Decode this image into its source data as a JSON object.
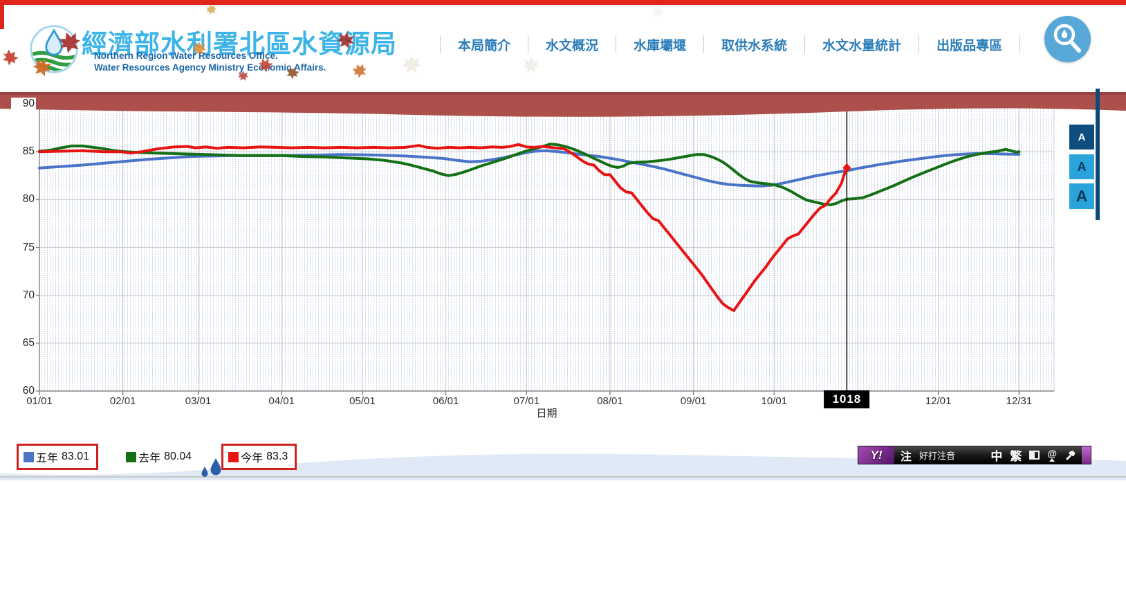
{
  "site": {
    "title_zh": "經濟部水利署北區水資源局",
    "subtitle_en_1": "Northern Region Water Resources Office.",
    "subtitle_en_2": "Water Resources Agency Ministry Economic Affairs."
  },
  "nav": {
    "items": [
      {
        "label": "本局簡介"
      },
      {
        "label": "水文概況"
      },
      {
        "label": "水庫壩堰"
      },
      {
        "label": "取供水系統"
      },
      {
        "label": "水文水量統計"
      },
      {
        "label": "出版品專區"
      }
    ]
  },
  "font_size_controls": {
    "items": [
      {
        "label": "A",
        "size": "small",
        "active": true
      },
      {
        "label": "A",
        "size": "medium",
        "active": false
      },
      {
        "label": "A",
        "size": "large",
        "active": false
      }
    ]
  },
  "legend": {
    "items": [
      {
        "label": "五年",
        "value": "83.01",
        "color": "#4a74c8",
        "boxed": true
      },
      {
        "label": "去年",
        "value": "80.04",
        "color": "#157015",
        "boxed": false
      },
      {
        "label": "今年",
        "value": "83.3",
        "color": "#e81414",
        "boxed": true
      }
    ]
  },
  "ime_bar": {
    "logo": "Y!",
    "mode": "注",
    "name": "好打注音",
    "lang": "中",
    "charset": "繁",
    "at": "@"
  },
  "colors": {
    "nav_blue": "#2b7db8",
    "title_blue": "#3db4e8",
    "banner_red": "#ad4f4b",
    "top_strip_red": "#e0261c",
    "button_dark": "#0e4d7e",
    "button_light": "#2aa2da",
    "tooltip_bg": "#000000"
  },
  "chart_data": {
    "type": "line",
    "title": "",
    "xlabel": "日期",
    "ylabel": "",
    "ylim": [
      60,
      90
    ],
    "yticks": [
      90,
      85,
      80,
      75,
      70,
      65,
      60
    ],
    "x_unit": "day_of_year",
    "x_domain_days": 377,
    "xtick_days": [
      0,
      31,
      59,
      90,
      120,
      151,
      181,
      212,
      243,
      273,
      304,
      334,
      364
    ],
    "xtick_labels": [
      "01/01",
      "02/01",
      "03/01",
      "04/01",
      "05/01",
      "06/01",
      "07/01",
      "08/01",
      "09/01",
      "10/01",
      "11/01",
      "12/01",
      "12/31"
    ],
    "grid": true,
    "legend_position": "bottom-left",
    "cursor": {
      "day": 300,
      "label": "1018"
    },
    "series": [
      {
        "name": "五年",
        "color": "#4a74c8",
        "current": 83.01,
        "end_marker": false,
        "points": [
          [
            0,
            83.3
          ],
          [
            8,
            83.45
          ],
          [
            16,
            83.6
          ],
          [
            24,
            83.8
          ],
          [
            32,
            84.0
          ],
          [
            40,
            84.2
          ],
          [
            48,
            84.35
          ],
          [
            56,
            84.5
          ],
          [
            64,
            84.55
          ],
          [
            72,
            84.6
          ],
          [
            80,
            84.6
          ],
          [
            88,
            84.6
          ],
          [
            96,
            84.62
          ],
          [
            104,
            84.65
          ],
          [
            112,
            84.7
          ],
          [
            120,
            84.68
          ],
          [
            128,
            84.62
          ],
          [
            136,
            84.55
          ],
          [
            144,
            84.42
          ],
          [
            150,
            84.3
          ],
          [
            155,
            84.1
          ],
          [
            160,
            83.95
          ],
          [
            164,
            84.0
          ],
          [
            168,
            84.15
          ],
          [
            172,
            84.35
          ],
          [
            176,
            84.6
          ],
          [
            180,
            84.85
          ],
          [
            184,
            85.05
          ],
          [
            188,
            85.1
          ],
          [
            192,
            85.02
          ],
          [
            196,
            84.9
          ],
          [
            200,
            84.75
          ],
          [
            204,
            84.62
          ],
          [
            208,
            84.5
          ],
          [
            212,
            84.32
          ],
          [
            216,
            84.12
          ],
          [
            220,
            83.9
          ],
          [
            224,
            83.68
          ],
          [
            228,
            83.45
          ],
          [
            232,
            83.2
          ],
          [
            236,
            82.9
          ],
          [
            240,
            82.6
          ],
          [
            244,
            82.3
          ],
          [
            248,
            82.0
          ],
          [
            252,
            81.75
          ],
          [
            256,
            81.58
          ],
          [
            260,
            81.5
          ],
          [
            264,
            81.45
          ],
          [
            268,
            81.42
          ],
          [
            272,
            81.5
          ],
          [
            276,
            81.7
          ],
          [
            280,
            81.95
          ],
          [
            284,
            82.2
          ],
          [
            288,
            82.45
          ],
          [
            292,
            82.65
          ],
          [
            296,
            82.85
          ],
          [
            300,
            83.01
          ],
          [
            304,
            83.25
          ],
          [
            308,
            83.45
          ],
          [
            312,
            83.65
          ],
          [
            316,
            83.82
          ],
          [
            320,
            84.0
          ],
          [
            324,
            84.15
          ],
          [
            328,
            84.3
          ],
          [
            332,
            84.45
          ],
          [
            336,
            84.58
          ],
          [
            340,
            84.68
          ],
          [
            344,
            84.75
          ],
          [
            348,
            84.8
          ],
          [
            352,
            84.8
          ],
          [
            356,
            84.78
          ],
          [
            360,
            84.74
          ],
          [
            364,
            84.72
          ]
        ]
      },
      {
        "name": "去年",
        "color": "#157015",
        "current": 80.04,
        "end_marker": false,
        "points": [
          [
            0,
            85.05
          ],
          [
            4,
            85.15
          ],
          [
            8,
            85.4
          ],
          [
            12,
            85.6
          ],
          [
            16,
            85.6
          ],
          [
            20,
            85.45
          ],
          [
            24,
            85.3
          ],
          [
            28,
            85.1
          ],
          [
            32,
            85.0
          ],
          [
            38,
            84.9
          ],
          [
            44,
            84.85
          ],
          [
            50,
            84.8
          ],
          [
            56,
            84.75
          ],
          [
            62,
            84.7
          ],
          [
            68,
            84.65
          ],
          [
            74,
            84.6
          ],
          [
            82,
            84.6
          ],
          [
            90,
            84.6
          ],
          [
            98,
            84.5
          ],
          [
            106,
            84.45
          ],
          [
            114,
            84.35
          ],
          [
            122,
            84.25
          ],
          [
            128,
            84.1
          ],
          [
            134,
            83.85
          ],
          [
            138,
            83.6
          ],
          [
            142,
            83.3
          ],
          [
            146,
            83.0
          ],
          [
            149,
            82.7
          ],
          [
            152,
            82.5
          ],
          [
            155,
            82.65
          ],
          [
            158,
            82.9
          ],
          [
            161,
            83.2
          ],
          [
            164,
            83.5
          ],
          [
            168,
            83.85
          ],
          [
            172,
            84.2
          ],
          [
            176,
            84.6
          ],
          [
            180,
            85.0
          ],
          [
            184,
            85.3
          ],
          [
            187,
            85.55
          ],
          [
            190,
            85.8
          ],
          [
            193,
            85.7
          ],
          [
            196,
            85.5
          ],
          [
            199,
            85.2
          ],
          [
            202,
            84.85
          ],
          [
            205,
            84.45
          ],
          [
            208,
            84.05
          ],
          [
            211,
            83.65
          ],
          [
            213,
            83.45
          ],
          [
            215,
            83.35
          ],
          [
            217,
            83.5
          ],
          [
            219,
            83.8
          ],
          [
            222,
            83.9
          ],
          [
            226,
            83.95
          ],
          [
            230,
            84.05
          ],
          [
            234,
            84.2
          ],
          [
            238,
            84.4
          ],
          [
            241,
            84.55
          ],
          [
            244,
            84.7
          ],
          [
            247,
            84.7
          ],
          [
            250,
            84.45
          ],
          [
            252,
            84.2
          ],
          [
            254,
            83.9
          ],
          [
            256,
            83.5
          ],
          [
            258,
            83.05
          ],
          [
            260,
            82.6
          ],
          [
            262,
            82.2
          ],
          [
            264,
            81.9
          ],
          [
            267,
            81.75
          ],
          [
            270,
            81.65
          ],
          [
            273,
            81.55
          ],
          [
            276,
            81.3
          ],
          [
            279,
            80.9
          ],
          [
            282,
            80.4
          ],
          [
            285,
            79.95
          ],
          [
            288,
            79.75
          ],
          [
            291,
            79.55
          ],
          [
            294,
            79.45
          ],
          [
            296,
            79.6
          ],
          [
            298,
            79.85
          ],
          [
            300,
            80.04
          ],
          [
            303,
            80.1
          ],
          [
            306,
            80.2
          ],
          [
            309,
            80.5
          ],
          [
            313,
            80.95
          ],
          [
            317,
            81.4
          ],
          [
            321,
            81.9
          ],
          [
            325,
            82.4
          ],
          [
            329,
            82.85
          ],
          [
            333,
            83.3
          ],
          [
            337,
            83.75
          ],
          [
            341,
            84.15
          ],
          [
            345,
            84.5
          ],
          [
            349,
            84.75
          ],
          [
            353,
            84.95
          ],
          [
            356,
            85.05
          ],
          [
            359,
            85.25
          ],
          [
            361,
            85.1
          ],
          [
            363,
            84.95
          ],
          [
            364,
            85.0
          ]
        ]
      },
      {
        "name": "今年",
        "color": "#e81414",
        "current": 83.3,
        "end_marker": true,
        "points": [
          [
            0,
            85.0
          ],
          [
            8,
            85.05
          ],
          [
            16,
            85.1
          ],
          [
            24,
            85.0
          ],
          [
            30,
            85.0
          ],
          [
            34,
            84.85
          ],
          [
            38,
            85.0
          ],
          [
            44,
            85.3
          ],
          [
            50,
            85.5
          ],
          [
            55,
            85.55
          ],
          [
            58,
            85.4
          ],
          [
            62,
            85.5
          ],
          [
            66,
            85.35
          ],
          [
            70,
            85.45
          ],
          [
            76,
            85.4
          ],
          [
            82,
            85.5
          ],
          [
            88,
            85.45
          ],
          [
            94,
            85.4
          ],
          [
            100,
            85.45
          ],
          [
            106,
            85.4
          ],
          [
            112,
            85.45
          ],
          [
            118,
            85.4
          ],
          [
            124,
            85.45
          ],
          [
            130,
            85.4
          ],
          [
            136,
            85.45
          ],
          [
            141,
            85.65
          ],
          [
            144,
            85.45
          ],
          [
            148,
            85.35
          ],
          [
            152,
            85.45
          ],
          [
            156,
            85.4
          ],
          [
            160,
            85.45
          ],
          [
            164,
            85.4
          ],
          [
            168,
            85.5
          ],
          [
            172,
            85.45
          ],
          [
            175,
            85.55
          ],
          [
            178,
            85.75
          ],
          [
            181,
            85.5
          ],
          [
            184,
            85.45
          ],
          [
            187,
            85.55
          ],
          [
            190,
            85.45
          ],
          [
            193,
            85.35
          ],
          [
            195,
            85.3
          ],
          [
            198,
            84.8
          ],
          [
            200,
            84.4
          ],
          [
            202,
            84.0
          ],
          [
            204,
            83.7
          ],
          [
            206,
            83.6
          ],
          [
            208,
            83.0
          ],
          [
            210,
            82.6
          ],
          [
            212,
            82.6
          ],
          [
            214,
            81.9
          ],
          [
            216,
            81.2
          ],
          [
            218,
            80.8
          ],
          [
            220,
            80.7
          ],
          [
            222,
            80.0
          ],
          [
            224,
            79.3
          ],
          [
            226,
            78.6
          ],
          [
            228,
            78.0
          ],
          [
            230,
            77.8
          ],
          [
            232,
            77.1
          ],
          [
            234,
            76.4
          ],
          [
            236,
            75.7
          ],
          [
            238,
            75.0
          ],
          [
            240,
            74.3
          ],
          [
            242,
            73.6
          ],
          [
            244,
            72.9
          ],
          [
            246,
            72.2
          ],
          [
            248,
            71.4
          ],
          [
            250,
            70.6
          ],
          [
            252,
            69.8
          ],
          [
            254,
            69.1
          ],
          [
            256,
            68.7
          ],
          [
            258,
            68.4
          ],
          [
            260,
            69.2
          ],
          [
            262,
            70.0
          ],
          [
            264,
            70.8
          ],
          [
            266,
            71.6
          ],
          [
            268,
            72.3
          ],
          [
            270,
            73.0
          ],
          [
            272,
            73.8
          ],
          [
            274,
            74.5
          ],
          [
            276,
            75.2
          ],
          [
            278,
            75.9
          ],
          [
            280,
            76.2
          ],
          [
            282,
            76.4
          ],
          [
            284,
            77.1
          ],
          [
            286,
            77.8
          ],
          [
            288,
            78.5
          ],
          [
            290,
            79.1
          ],
          [
            292,
            79.4
          ],
          [
            294,
            80.1
          ],
          [
            296,
            80.7
          ],
          [
            297,
            81.2
          ],
          [
            298,
            81.7
          ],
          [
            299,
            82.6
          ],
          [
            300,
            83.3
          ]
        ]
      }
    ]
  }
}
